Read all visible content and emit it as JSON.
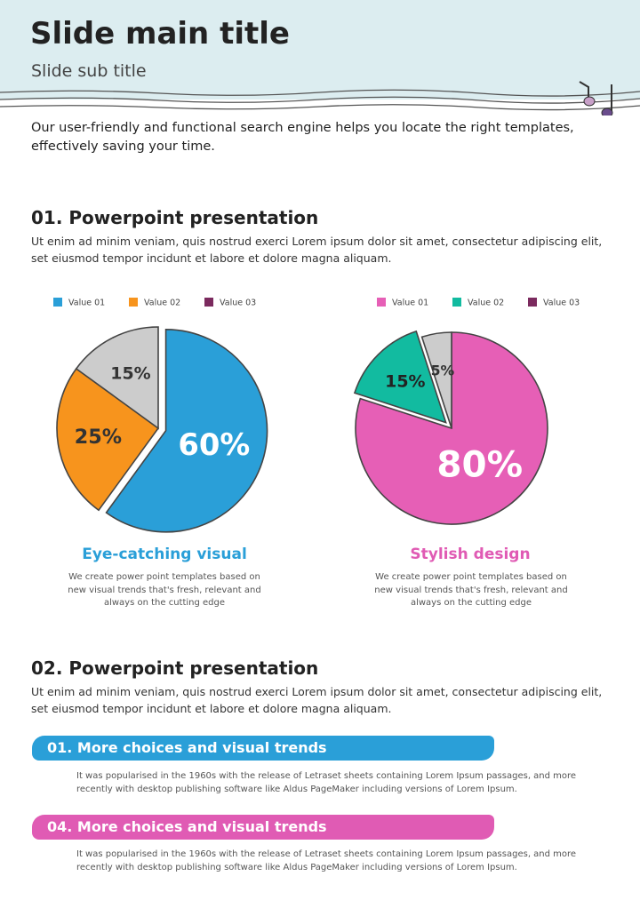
{
  "header": {
    "title": "Slide main title",
    "subtitle": "Slide sub title"
  },
  "intro": "Our user-friendly and functional search engine helps you locate the right templates, effectively saving your time.",
  "sections": [
    {
      "heading": "01. Powerpoint presentation",
      "body": "Ut enim ad minim veniam, quis nostrud exerci  Lorem ipsum dolor sit amet, consectetur adipiscing elit, set eiusmod tempor incidunt et labore et dolore magna aliquam."
    },
    {
      "heading": "02. Powerpoint presentation",
      "body": "Ut enim ad minim veniam, quis nostrud exerci  Lorem ipsum dolor sit amet, consectetur adipiscing elit, set eiusmod tempor incidunt et labore et dolore magna aliquam."
    }
  ],
  "chart_data": [
    {
      "type": "pie",
      "title": "Eye-catching visual",
      "title_color": "#2a9fd8",
      "description": "We create power point templates based on new visual trends that's fresh, relevant and always on the cutting edge",
      "categories": [
        "Value 01",
        "Value 02",
        "Value 03"
      ],
      "values": [
        60,
        25,
        15
      ],
      "value_labels": [
        "60%",
        "25%",
        "15%"
      ],
      "colors": [
        "#2a9fd8",
        "#f7941d",
        "#cccccc"
      ],
      "legend_colors": [
        "#2a9fd8",
        "#f7941d",
        "#7b2a5e"
      ],
      "label_colors": [
        "#ffffff",
        "#333333",
        "#333333"
      ],
      "explode": [
        true,
        false,
        false
      ]
    },
    {
      "type": "pie",
      "title": "Stylish design",
      "title_color": "#e05bb4",
      "description": "We create power point templates based on new visual trends that's fresh, relevant and always on the cutting edge",
      "categories": [
        "Value 01",
        "Value 02",
        "Value 03"
      ],
      "values": [
        80,
        15,
        5
      ],
      "value_labels": [
        "80%",
        "15%",
        "5%"
      ],
      "colors": [
        "#e65fb6",
        "#12bba0",
        "#cccccc"
      ],
      "legend_colors": [
        "#e65fb6",
        "#12bba0",
        "#7b2a5e"
      ],
      "label_colors": [
        "#ffffff",
        "#222222",
        "#333333"
      ],
      "explode": [
        false,
        true,
        false
      ]
    }
  ],
  "items": [
    {
      "title": "01. More choices and visual trends",
      "body": "It was popularised in the 1960s with the release of Letraset sheets containing Lorem Ipsum passages, and more recently with desktop publishing software like Aldus PageMaker including versions of Lorem Ipsum."
    },
    {
      "title": "04. More choices and visual trends",
      "body": "It was popularised in the 1960s with the release of Letraset sheets containing Lorem Ipsum passages, and more recently with desktop publishing software like Aldus PageMaker including versions of Lorem Ipsum."
    }
  ]
}
